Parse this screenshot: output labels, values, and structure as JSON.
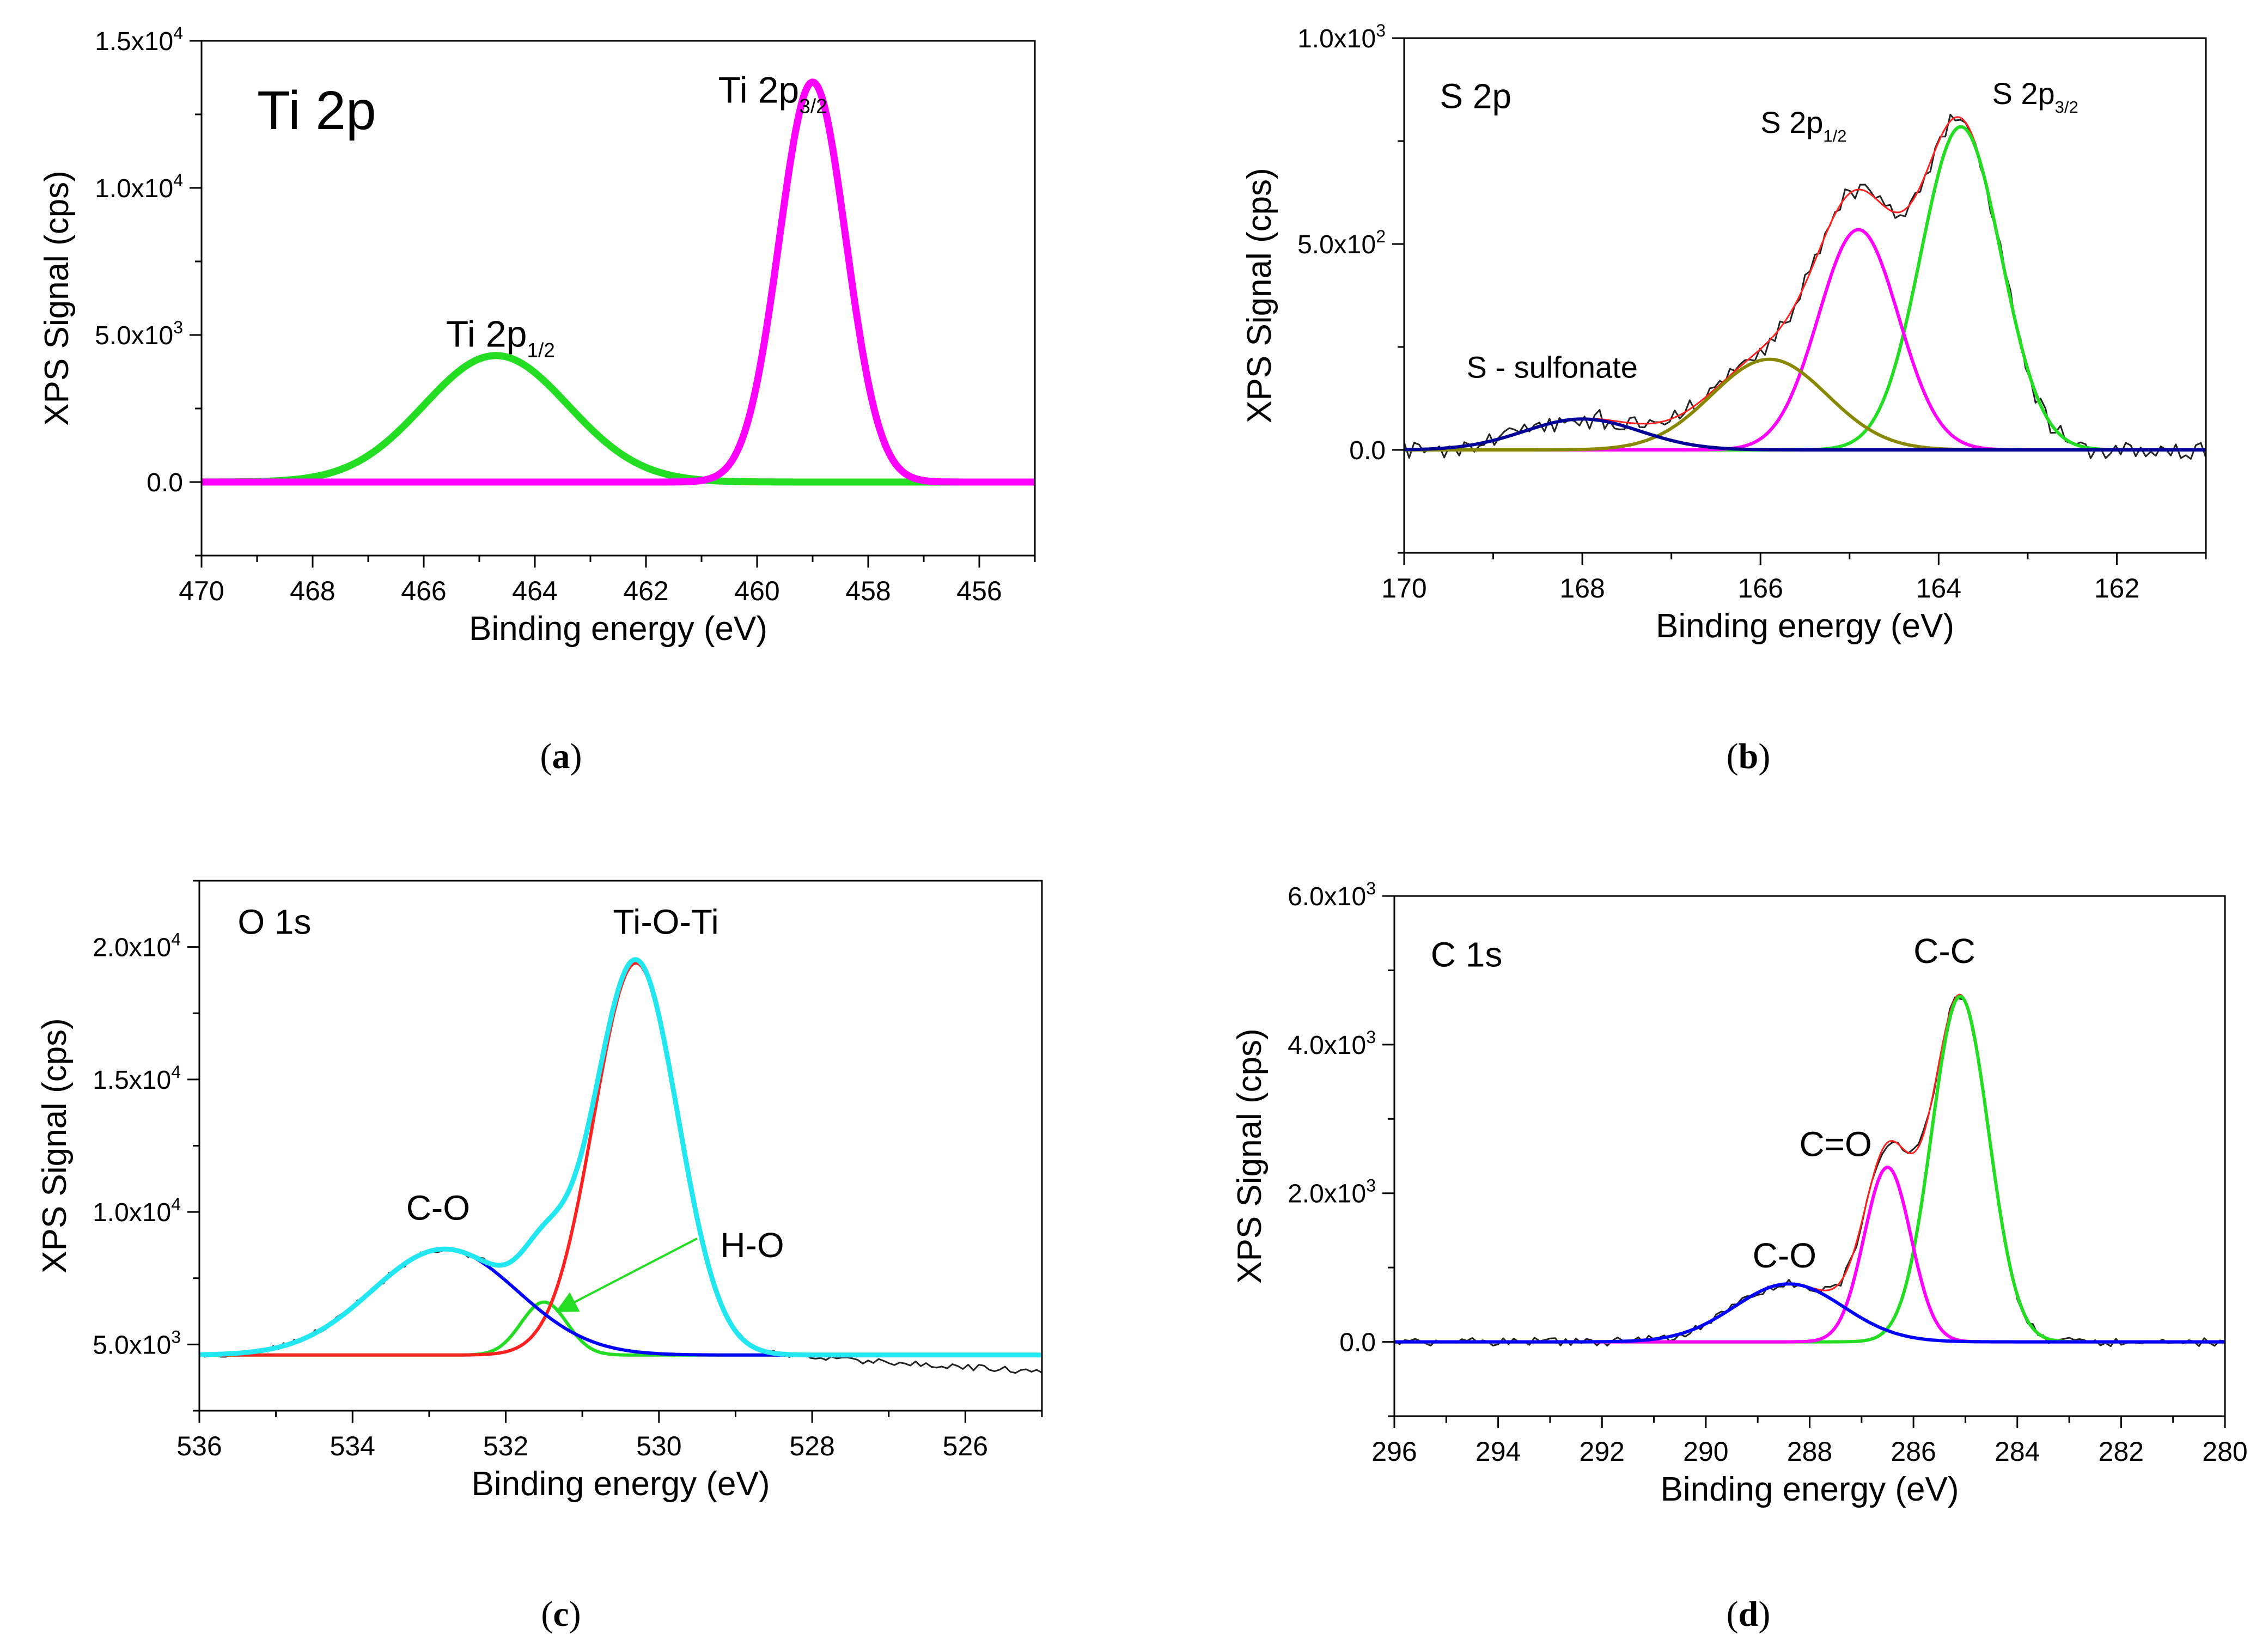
{
  "colors": {
    "ti_green": "#22dd22",
    "ti_magenta": "#ff00ff",
    "black": "#222222",
    "red": "#ff2020",
    "green": "#22dd22",
    "magenta": "#ff00ff",
    "olive": "#888800",
    "navy": "#000099",
    "cyan": "#22e6f0",
    "blue": "#0000ff",
    "arrow": "#22dd22"
  },
  "chart_data": [
    {
      "id": "a",
      "type": "line",
      "caption": "a",
      "panel_title": "Ti 2p",
      "xlabel": "Binding energy (eV)",
      "ylabel": "XPS Signal (cps)",
      "xlim": [
        470,
        455
      ],
      "ylim": [
        -2500,
        15000
      ],
      "xticks": [
        470,
        468,
        466,
        464,
        462,
        460,
        458,
        456
      ],
      "xtick_labels": [
        "470",
        "468",
        "466",
        "464",
        "462",
        "460",
        "458",
        "456"
      ],
      "yticks": [
        0,
        5000,
        10000,
        15000
      ],
      "ytick_labels": [
        {
          "base": "0.0",
          "exp": ""
        },
        {
          "base": "5.0x10",
          "exp": "3"
        },
        {
          "base": "1.0x10",
          "exp": "4"
        },
        {
          "base": "1.5x10",
          "exp": "4"
        }
      ],
      "series": [
        {
          "name": "Ti 2p1/2",
          "kind": "gauss",
          "center": 464.7,
          "sigma": 1.3,
          "amplitude": 4300,
          "baseline": 0,
          "color_key": "ti_green",
          "width": 13
        },
        {
          "name": "Ti 2p3/2",
          "kind": "gauss",
          "center": 459.0,
          "sigma": 0.6,
          "amplitude": 13600,
          "baseline": 0,
          "color_key": "ti_magenta",
          "width": 13
        }
      ],
      "annotations": [
        {
          "label": "Ti 2p",
          "sub": "",
          "x": 469.0,
          "y": 12000,
          "size": 100
        },
        {
          "label": "Ti 2p",
          "sub": "3/2",
          "x": 460.7,
          "y": 12900,
          "size": 68
        },
        {
          "label": "Ti 2p",
          "sub": "1/2",
          "x": 465.6,
          "y": 4600,
          "size": 68
        }
      ],
      "arrow": null
    },
    {
      "id": "b",
      "type": "line",
      "caption": "b",
      "panel_title": "S 2p",
      "xlabel": "Binding energy (eV)",
      "ylabel": "XPS Signal (cps)",
      "xlim": [
        170,
        161
      ],
      "ylim": [
        -250,
        1000
      ],
      "xticks": [
        170,
        168,
        166,
        164,
        162
      ],
      "xtick_labels": [
        "170",
        "168",
        "166",
        "164",
        "162"
      ],
      "yticks": [
        0,
        500,
        1000
      ],
      "ytick_labels": [
        {
          "base": "0.0",
          "exp": ""
        },
        {
          "base": "5.0x10",
          "exp": "2"
        },
        {
          "base": "1.0x10",
          "exp": "3"
        }
      ],
      "series": [
        {
          "name": "raw",
          "kind": "raw",
          "components": [
            {
              "center": 168.0,
              "sigma": 0.65,
              "amplitude": 75
            },
            {
              "center": 165.9,
              "sigma": 0.65,
              "amplitude": 220
            },
            {
              "center": 164.9,
              "sigma": 0.45,
              "amplitude": 535
            },
            {
              "center": 163.75,
              "sigma": 0.45,
              "amplitude": 785
            }
          ],
          "baseline": 0,
          "noise": 25,
          "color_key": "black",
          "width": 3
        },
        {
          "name": "fit envelope",
          "kind": "sum",
          "components": [
            {
              "center": 168.0,
              "sigma": 0.65,
              "amplitude": 75
            },
            {
              "center": 165.9,
              "sigma": 0.65,
              "amplitude": 220
            },
            {
              "center": 164.9,
              "sigma": 0.45,
              "amplitude": 535
            },
            {
              "center": 163.75,
              "sigma": 0.45,
              "amplitude": 785
            }
          ],
          "baseline": 0,
          "color_key": "red",
          "width": 3
        },
        {
          "name": "S 2p3/2",
          "kind": "gauss",
          "center": 163.75,
          "sigma": 0.45,
          "amplitude": 785,
          "baseline": 0,
          "color_key": "green",
          "width": 6
        },
        {
          "name": "S 2p1/2",
          "kind": "gauss",
          "center": 164.9,
          "sigma": 0.45,
          "amplitude": 535,
          "baseline": 0,
          "color_key": "magenta",
          "width": 6
        },
        {
          "name": "S 2p (olive)",
          "kind": "gauss",
          "center": 165.9,
          "sigma": 0.65,
          "amplitude": 220,
          "baseline": 0,
          "color_key": "olive",
          "width": 6
        },
        {
          "name": "S - sulfonate",
          "kind": "gauss",
          "center": 168.0,
          "sigma": 0.65,
          "amplitude": 75,
          "baseline": 0,
          "color_key": "navy",
          "width": 6
        }
      ],
      "annotations": [
        {
          "label": "S 2p",
          "sub": "",
          "x": 169.6,
          "y": 830,
          "size": 64
        },
        {
          "label": "S 2p",
          "sub": "1/2",
          "x": 166.0,
          "y": 770,
          "size": 56
        },
        {
          "label": "S 2p",
          "sub": "3/2",
          "x": 163.4,
          "y": 840,
          "size": 56
        },
        {
          "label": "S - sulfonate",
          "sub": "",
          "x": 169.3,
          "y": 175,
          "size": 56
        }
      ],
      "arrow": null
    },
    {
      "id": "c",
      "type": "line",
      "caption": "c",
      "panel_title": "O 1s",
      "xlabel": "Binding energy (eV)",
      "ylabel": "XPS Signal (cps)",
      "xlim": [
        536,
        525
      ],
      "ylim": [
        2500,
        22500
      ],
      "xticks": [
        536,
        534,
        532,
        530,
        528,
        526
      ],
      "xtick_labels": [
        "536",
        "534",
        "532",
        "530",
        "528",
        "526"
      ],
      "yticks": [
        5000,
        10000,
        15000,
        20000
      ],
      "ytick_labels": [
        {
          "base": "5.0x10",
          "exp": "3"
        },
        {
          "base": "1.0x10",
          "exp": "4"
        },
        {
          "base": "1.5x10",
          "exp": "4"
        },
        {
          "base": "2.0x10",
          "exp": "4"
        }
      ],
      "series": [
        {
          "name": "raw",
          "kind": "raw",
          "components": [
            {
              "center": 532.8,
              "sigma": 0.95,
              "amplitude": 4000
            },
            {
              "center": 531.5,
              "sigma": 0.3,
              "amplitude": 2000
            },
            {
              "center": 530.3,
              "sigma": 0.55,
              "amplitude": 14800
            }
          ],
          "baseline": 4600,
          "noise": 120,
          "color_key": "black",
          "width": 3
        },
        {
          "name": "H-O",
          "kind": "gauss",
          "center": 531.5,
          "sigma": 0.3,
          "amplitude": 2000,
          "baseline": 4600,
          "color_key": "green",
          "width": 6
        },
        {
          "name": "Ti-O-Ti",
          "kind": "gauss",
          "center": 530.3,
          "sigma": 0.55,
          "amplitude": 14800,
          "baseline": 4600,
          "color_key": "red",
          "width": 6
        },
        {
          "name": "C-O",
          "kind": "gauss",
          "center": 532.8,
          "sigma": 0.95,
          "amplitude": 4000,
          "baseline": 4600,
          "color_key": "blue",
          "width": 6
        },
        {
          "name": "fit envelope",
          "kind": "sum",
          "components": [
            {
              "center": 532.8,
              "sigma": 0.95,
              "amplitude": 4000
            },
            {
              "center": 531.5,
              "sigma": 0.3,
              "amplitude": 2000
            },
            {
              "center": 530.3,
              "sigma": 0.55,
              "amplitude": 14800
            }
          ],
          "baseline": 4600,
          "color_key": "cyan",
          "width": 9
        }
      ],
      "annotations": [
        {
          "label": "O 1s",
          "sub": "",
          "x": 535.5,
          "y": 20500,
          "size": 64
        },
        {
          "label": "Ti-O-Ti",
          "sub": "",
          "x": 530.6,
          "y": 20500,
          "size": 64
        },
        {
          "label": "C-O",
          "sub": "",
          "x": 533.3,
          "y": 9700,
          "size": 64
        },
        {
          "label": "H-O",
          "sub": "",
          "x": 529.2,
          "y": 8300,
          "size": 64
        }
      ],
      "arrow": {
        "from": [
          529.5,
          9000
        ],
        "to": [
          531.3,
          6300
        ]
      }
    },
    {
      "id": "d",
      "type": "line",
      "caption": "d",
      "panel_title": "C 1s",
      "xlabel": "Binding energy (eV)",
      "ylabel": "XPS Signal (cps)",
      "xlim": [
        296,
        280
      ],
      "ylim": [
        -1000,
        6000
      ],
      "xticks": [
        296,
        294,
        292,
        290,
        288,
        286,
        284,
        282,
        280
      ],
      "xtick_labels": [
        "296",
        "294",
        "292",
        "290",
        "288",
        "286",
        "284",
        "282",
        "280"
      ],
      "yticks": [
        0,
        2000,
        4000,
        6000
      ],
      "ytick_labels": [
        {
          "base": "0.0",
          "exp": ""
        },
        {
          "base": "2.0x10",
          "exp": "3"
        },
        {
          "base": "4.0x10",
          "exp": "3"
        },
        {
          "base": "6.0x10",
          "exp": "3"
        }
      ],
      "series": [
        {
          "name": "raw",
          "kind": "raw",
          "components": [
            {
              "center": 288.4,
              "sigma": 1.05,
              "amplitude": 780
            },
            {
              "center": 286.5,
              "sigma": 0.45,
              "amplitude": 2350
            },
            {
              "center": 285.1,
              "sigma": 0.55,
              "amplitude": 4650
            }
          ],
          "baseline": 0,
          "noise": 60,
          "color_key": "black",
          "width": 3
        },
        {
          "name": "fit envelope",
          "kind": "sum",
          "components": [
            {
              "center": 288.4,
              "sigma": 1.05,
              "amplitude": 780
            },
            {
              "center": 286.5,
              "sigma": 0.45,
              "amplitude": 2350
            },
            {
              "center": 285.1,
              "sigma": 0.55,
              "amplitude": 4650
            }
          ],
          "baseline": 0,
          "color_key": "red",
          "width": 3
        },
        {
          "name": "C-C",
          "kind": "gauss",
          "center": 285.1,
          "sigma": 0.55,
          "amplitude": 4650,
          "baseline": 0,
          "color_key": "green",
          "width": 6
        },
        {
          "name": "C=O",
          "kind": "gauss",
          "center": 286.5,
          "sigma": 0.45,
          "amplitude": 2350,
          "baseline": 0,
          "color_key": "magenta",
          "width": 6
        },
        {
          "name": "C-O",
          "kind": "gauss",
          "center": 288.4,
          "sigma": 1.05,
          "amplitude": 780,
          "baseline": 0,
          "color_key": "blue",
          "width": 6
        }
      ],
      "annotations": [
        {
          "label": "C 1s",
          "sub": "",
          "x": 295.3,
          "y": 5050,
          "size": 64
        },
        {
          "label": "C-C",
          "sub": "",
          "x": 286.0,
          "y": 5100,
          "size": 64
        },
        {
          "label": "C=O",
          "sub": "",
          "x": 288.2,
          "y": 2500,
          "size": 64
        },
        {
          "label": "C-O",
          "sub": "",
          "x": 289.1,
          "y": 1000,
          "size": 64
        }
      ],
      "arrow": null
    }
  ]
}
